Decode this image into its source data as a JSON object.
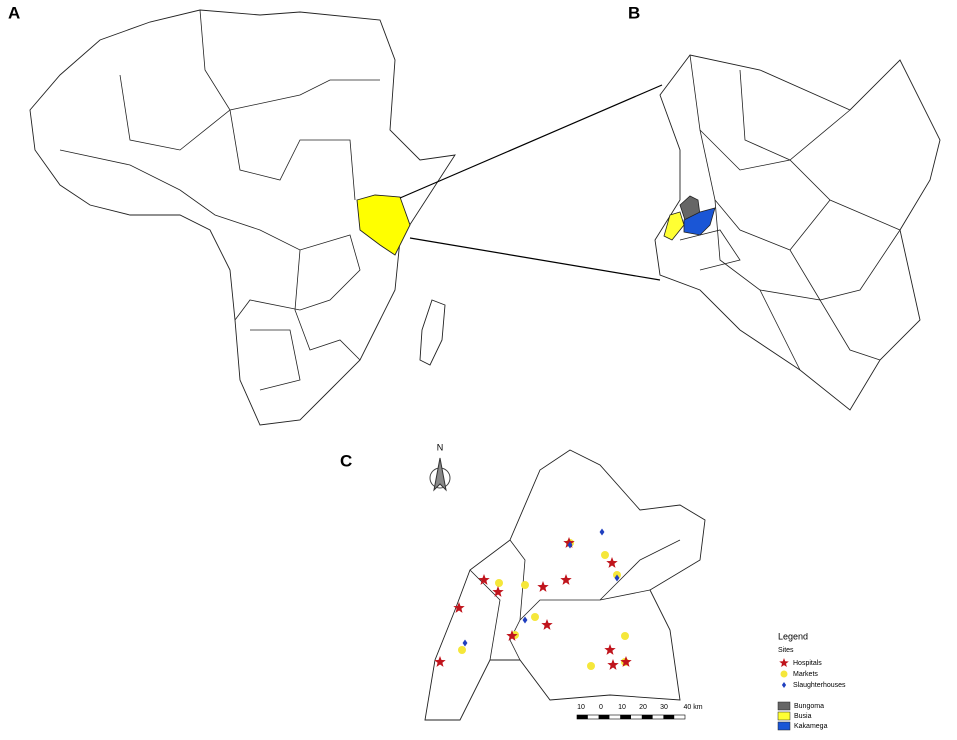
{
  "panels": {
    "a": "A",
    "b": "B",
    "c": "C"
  },
  "north_arrow": "N",
  "legend": {
    "title": "Legend",
    "group": "Sites",
    "sites": [
      "Hospitals",
      "Markets",
      "Slaughterhouses"
    ],
    "counties": [
      "Bungoma",
      "Busia",
      "Kakamega"
    ]
  },
  "scale_bar": [
    "10",
    "0",
    "10",
    "20",
    "30",
    "40 km"
  ]
}
